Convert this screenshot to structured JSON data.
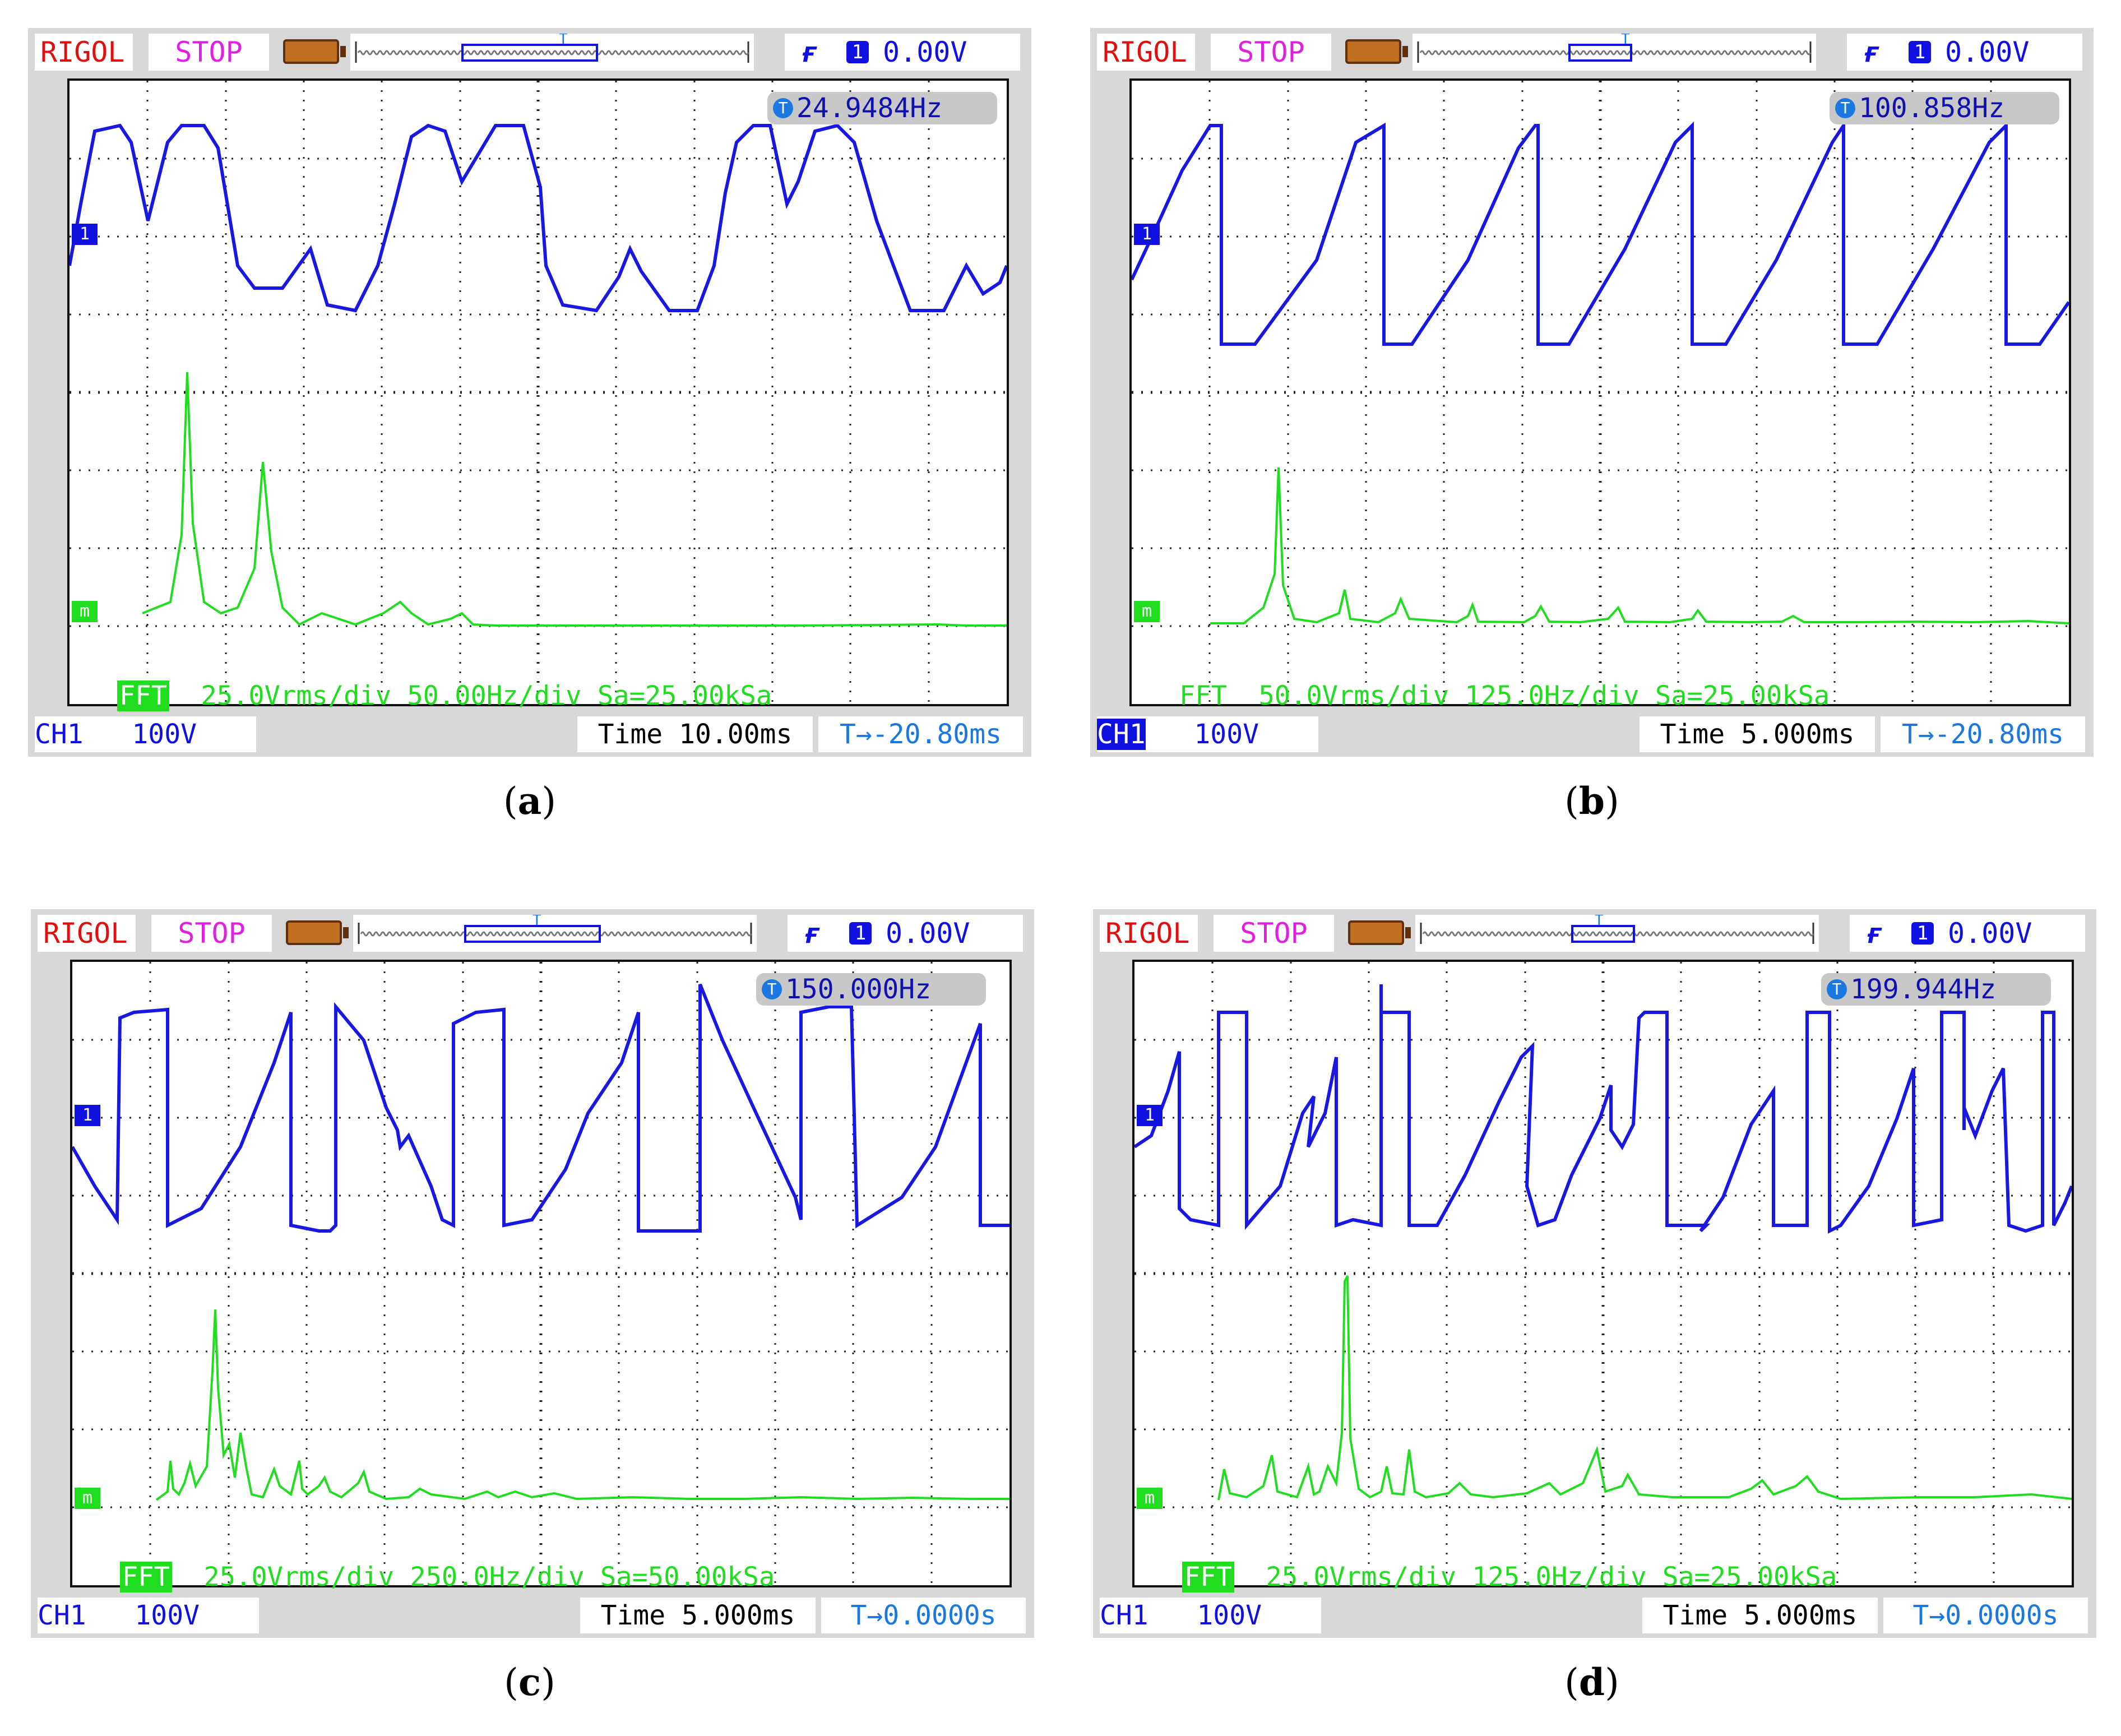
{
  "panels": [
    {
      "id": "a",
      "caption": "a",
      "freq": "24.9484Hz",
      "fft_label": "25.0Vrms/div 50.00Hz/div Sa=25.00kSa",
      "ch": "CH1",
      "volts": "100V",
      "time": "Time 10.00ms",
      "offset": "-20.80ms",
      "ch_highlight": false
    },
    {
      "id": "b",
      "caption": "b",
      "freq": "100.858Hz",
      "fft_label": "50.0Vrms/div 125.0Hz/div Sa=25.00kSa",
      "ch": "CH1",
      "volts": "100V",
      "time": "Time 5.000ms",
      "offset": "-20.80ms",
      "ch_highlight": true
    },
    {
      "id": "c",
      "caption": "c",
      "freq": "150.000Hz",
      "fft_label": "25.0Vrms/div 250.0Hz/div Sa=50.00kSa",
      "ch": "CH1",
      "volts": "100V",
      "time": "Time 5.000ms",
      "offset": "0.0000s",
      "ch_highlight": false
    },
    {
      "id": "d",
      "caption": "d",
      "freq": "199.944Hz",
      "fft_label": "25.0Vrms/div 125.0Hz/div Sa=25.00kSa",
      "ch": "CH1",
      "volts": "100V",
      "time": "Time 5.000ms",
      "offset": "0.0000s",
      "ch_highlight": false
    }
  ],
  "common": {
    "brand": "RIGOL",
    "status": "STOP",
    "trigger_level": "0.00V",
    "trigger_channel": "1",
    "trigger_icon": "T",
    "fft_tag": "FFT",
    "ch1_marker": "1",
    "math_marker": "m",
    "offset_prefix": "→",
    "caption_open": "(",
    "caption_close": ")"
  },
  "colors": {
    "waveform": "#1818e0",
    "fft": "#20dd20",
    "brand": "#e01010",
    "stop": "#e020e0"
  }
}
